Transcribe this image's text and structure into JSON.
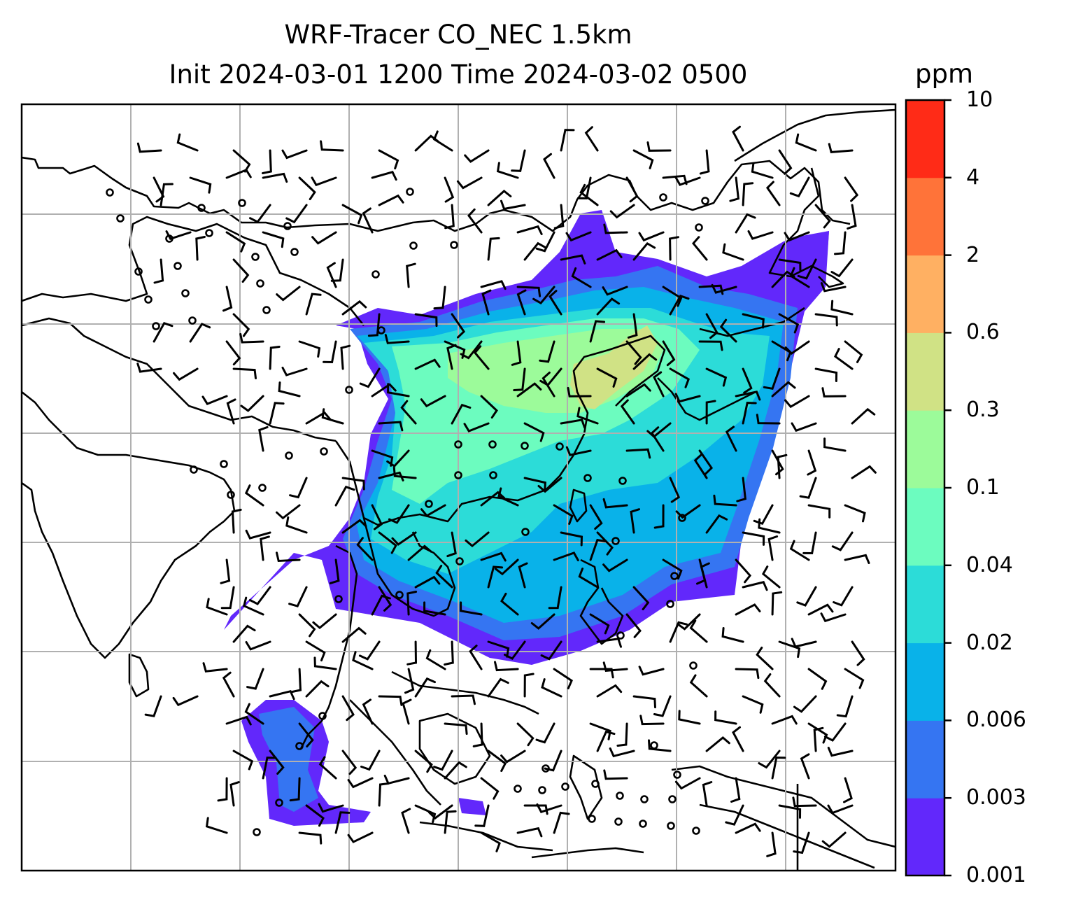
{
  "title": {
    "line1": "WRF-Tracer CO_NEC 1.5km",
    "line2": "Init 2024-03-01 1200 Time 2024-03-02 0500"
  },
  "colorbar": {
    "unit": "ppm",
    "levels": [
      "0.001",
      "0.003",
      "0.006",
      "0.02",
      "0.04",
      "0.1",
      "0.3",
      "0.6",
      "2",
      "4",
      "10"
    ],
    "colors": [
      "#6228fb",
      "#3575f2",
      "#09b2e9",
      "#2cdcd8",
      "#6cfcbf",
      "#9cfb9a",
      "#d0e285",
      "#ffb062",
      "#ff7339",
      "#ff2b17"
    ]
  },
  "map": {
    "coastline_color": "#000000",
    "gridline_color": "#b0b0b0",
    "wind_barb_color": "#000000",
    "calm_symbol": "circle"
  },
  "chart_data": {
    "type": "heatmap",
    "variable": "CO_NEC tracer concentration at 1.5km",
    "units": "ppm",
    "level_boundaries": [
      0.001,
      0.003,
      0.006,
      0.02,
      0.04,
      0.1,
      0.3,
      0.6,
      2,
      4,
      10
    ],
    "overlay": "wind barbs",
    "grid": true
  }
}
